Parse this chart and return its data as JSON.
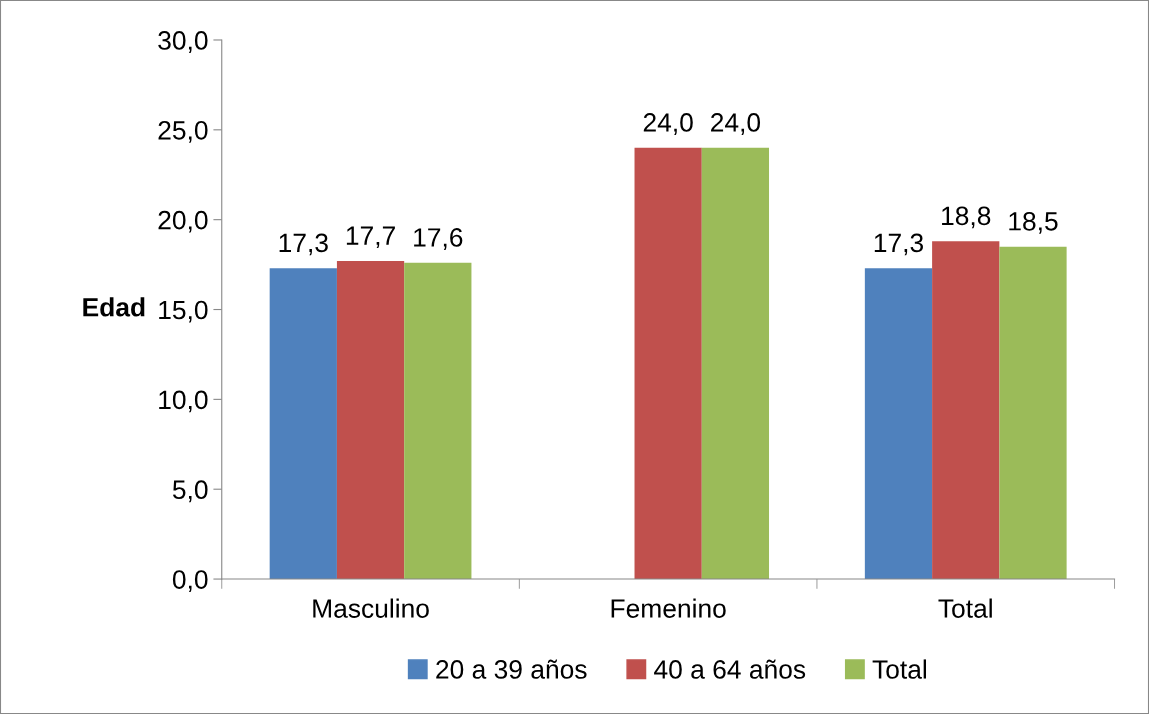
{
  "chart_data": {
    "type": "bar",
    "ylabel": "Edad",
    "categories": [
      "Masculino",
      "Femenino",
      "Total"
    ],
    "series": [
      {
        "name": "20 a 39 años",
        "color": "#4f81bd",
        "values": [
          17.3,
          null,
          17.3
        ],
        "value_labels": [
          "17,3",
          null,
          "17,3"
        ]
      },
      {
        "name": "40 a 64 años",
        "color": "#c0504d",
        "values": [
          17.7,
          24.0,
          18.8
        ],
        "value_labels": [
          "17,7",
          "24,0",
          "18,8"
        ]
      },
      {
        "name": "Total",
        "color": "#9bbb59",
        "values": [
          17.6,
          24.0,
          18.5
        ],
        "value_labels": [
          "17,6",
          "24,0",
          "18,5"
        ]
      }
    ],
    "ylim": [
      0,
      30
    ],
    "yticks": [
      {
        "value": 0,
        "label": "0,0"
      },
      {
        "value": 5,
        "label": "5,0"
      },
      {
        "value": 10,
        "label": "10,0"
      },
      {
        "value": 15,
        "label": "15,0"
      },
      {
        "value": 20,
        "label": "20,0"
      },
      {
        "value": 25,
        "label": "25,0"
      },
      {
        "value": 30,
        "label": "30,0"
      }
    ],
    "grid": false,
    "legend": "bottom"
  }
}
